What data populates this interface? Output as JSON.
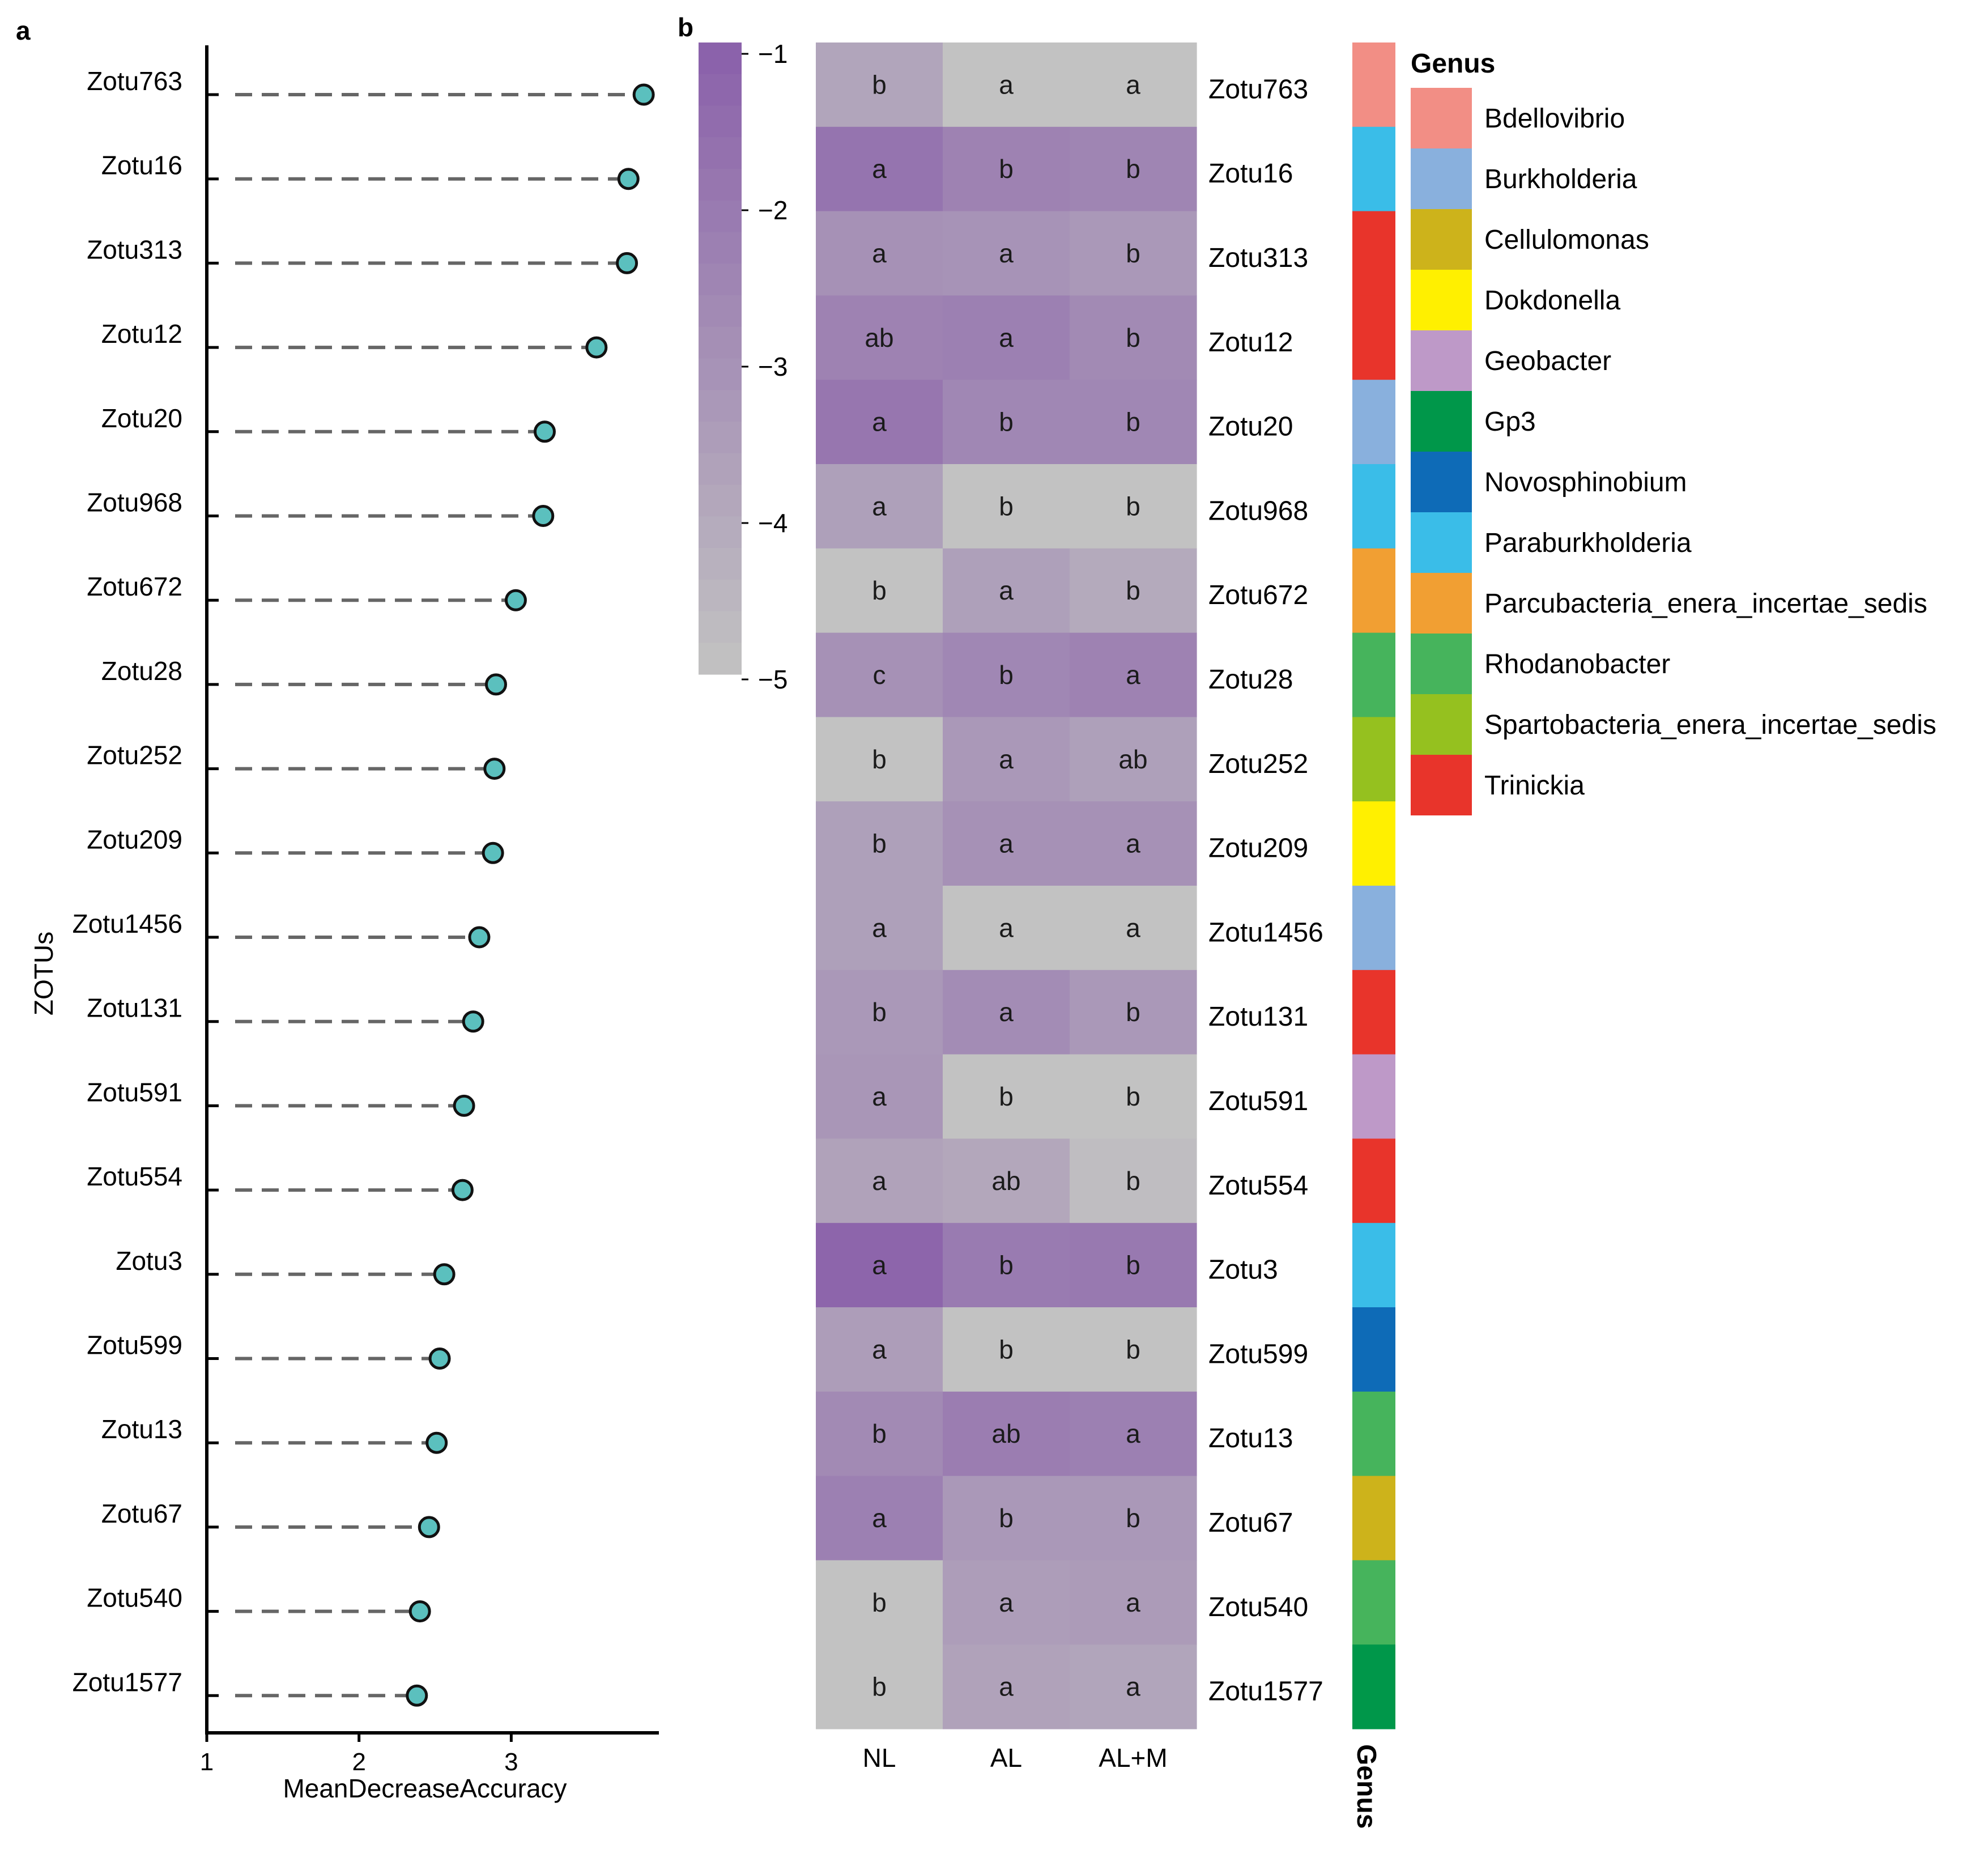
{
  "chart_data": [
    {
      "type": "lollipop",
      "panel": "a",
      "xlabel": "MeanDecreaseAccuracy",
      "ylabel": "ZOTUs",
      "xlim": [
        1,
        3.97
      ],
      "xticks": [
        1,
        2,
        3
      ],
      "categories": [
        "Zotu763",
        "Zotu16",
        "Zotu313",
        "Zotu12",
        "Zotu20",
        "Zotu968",
        "Zotu672",
        "Zotu28",
        "Zotu252",
        "Zotu209",
        "Zotu1456",
        "Zotu131",
        "Zotu591",
        "Zotu554",
        "Zotu3",
        "Zotu599",
        "Zotu13",
        "Zotu67",
        "Zotu540",
        "Zotu1577"
      ],
      "values": [
        3.87,
        3.77,
        3.76,
        3.56,
        3.22,
        3.21,
        3.03,
        2.9,
        2.89,
        2.88,
        2.79,
        2.75,
        2.69,
        2.68,
        2.56,
        2.53,
        2.51,
        2.46,
        2.4,
        2.38
      ],
      "point_color": "#5bc0be",
      "line_color": "#666666"
    },
    {
      "type": "heatmap",
      "panel": "b",
      "columns": [
        "NL",
        "AL",
        "AL+M"
      ],
      "rows": [
        "Zotu763",
        "Zotu16",
        "Zotu313",
        "Zotu12",
        "Zotu20",
        "Zotu968",
        "Zotu672",
        "Zotu28",
        "Zotu252",
        "Zotu209",
        "Zotu1456",
        "Zotu131",
        "Zotu591",
        "Zotu554",
        "Zotu3",
        "Zotu599",
        "Zotu13",
        "Zotu67",
        "Zotu540",
        "Zotu1577"
      ],
      "values": [
        [
          -3.8,
          -5.0,
          -5.0
        ],
        [
          -1.8,
          -2.4,
          -2.5
        ],
        [
          -3.0,
          -3.1,
          -3.3
        ],
        [
          -2.4,
          -2.3,
          -2.7
        ],
        [
          -1.9,
          -2.6,
          -2.6
        ],
        [
          -3.6,
          -5.0,
          -5.0
        ],
        [
          -5.0,
          -3.6,
          -4.0
        ],
        [
          -3.0,
          -2.6,
          -2.4
        ],
        [
          -5.0,
          -3.3,
          -3.6
        ],
        [
          -3.6,
          -3.0,
          -3.0
        ],
        [
          -3.6,
          -5.0,
          -5.0
        ],
        [
          -3.3,
          -2.8,
          -3.3
        ],
        [
          -3.2,
          -5.0,
          -5.0
        ],
        [
          -3.7,
          -3.9,
          -4.8
        ],
        [
          -1.2,
          -2.1,
          -2.0
        ],
        [
          -3.5,
          -5.0,
          -5.0
        ],
        [
          -2.7,
          -2.2,
          -2.3
        ],
        [
          -2.3,
          -3.3,
          -3.3
        ],
        [
          -5.0,
          -3.5,
          -3.4
        ],
        [
          -5.0,
          -3.7,
          -3.8
        ]
      ],
      "letters": [
        [
          "b",
          "a",
          "a"
        ],
        [
          "a",
          "b",
          "b"
        ],
        [
          "a",
          "a",
          "b"
        ],
        [
          "ab",
          "a",
          "b"
        ],
        [
          "a",
          "b",
          "b"
        ],
        [
          "a",
          "b",
          "b"
        ],
        [
          "b",
          "a",
          "b"
        ],
        [
          "c",
          "b",
          "a"
        ],
        [
          "b",
          "a",
          "ab"
        ],
        [
          "b",
          "a",
          "a"
        ],
        [
          "a",
          "a",
          "a"
        ],
        [
          "b",
          "a",
          "b"
        ],
        [
          "a",
          "b",
          "b"
        ],
        [
          "a",
          "ab",
          "b"
        ],
        [
          "a",
          "b",
          "b"
        ],
        [
          "a",
          "b",
          "b"
        ],
        [
          "b",
          "ab",
          "a"
        ],
        [
          "a",
          "b",
          "b"
        ],
        [
          "b",
          "a",
          "a"
        ],
        [
          "b",
          "a",
          "a"
        ]
      ],
      "color_scale": {
        "min": -5,
        "max": -1,
        "low_color": "#c2c2c2",
        "high_color": "#8a60aa",
        "ticks": [
          "−1",
          "−2",
          "−3",
          "−4",
          "−5"
        ]
      },
      "annotation_title": "Genus",
      "row_genus": [
        "Bdellovibrio",
        "Paraburkholderia",
        "Trinickia",
        "Trinickia",
        "Burkholderia",
        "Paraburkholderia",
        "Parcubacteria_enera_incertae_sedis",
        "Rhodanobacter",
        "Spartobacteria_enera_incertae_sedis",
        "Dokdonella",
        "Burkholderia",
        "Trinickia",
        "Geobacter",
        "Trinickia",
        "Paraburkholderia",
        "Novosphinobium",
        "Rhodanobacter",
        "Cellulomonas",
        "Rhodanobacter",
        "Gp3"
      ],
      "legend": {
        "title": "Genus",
        "items": [
          {
            "name": "Bdellovibrio",
            "color": "#f28e85"
          },
          {
            "name": "Burkholderia",
            "color": "#89b0dd"
          },
          {
            "name": "Cellulomonas",
            "color": "#cdb31b"
          },
          {
            "name": "Dokdonella",
            "color": "#fff000"
          },
          {
            "name": "Geobacter",
            "color": "#be99c8"
          },
          {
            "name": "Gp3",
            "color": "#00974a"
          },
          {
            "name": "Novosphinobium",
            "color": "#0e6bb7"
          },
          {
            "name": "Paraburkholderia",
            "color": "#3abde8"
          },
          {
            "name": "Parcubacteria_enera_incertae_sedis",
            "color": "#f19f33"
          },
          {
            "name": "Rhodanobacter",
            "color": "#46b45c"
          },
          {
            "name": "Spartobacteria_enera_incertae_sedis",
            "color": "#95c11f"
          },
          {
            "name": "Trinickia",
            "color": "#e8342b"
          }
        ]
      }
    }
  ]
}
